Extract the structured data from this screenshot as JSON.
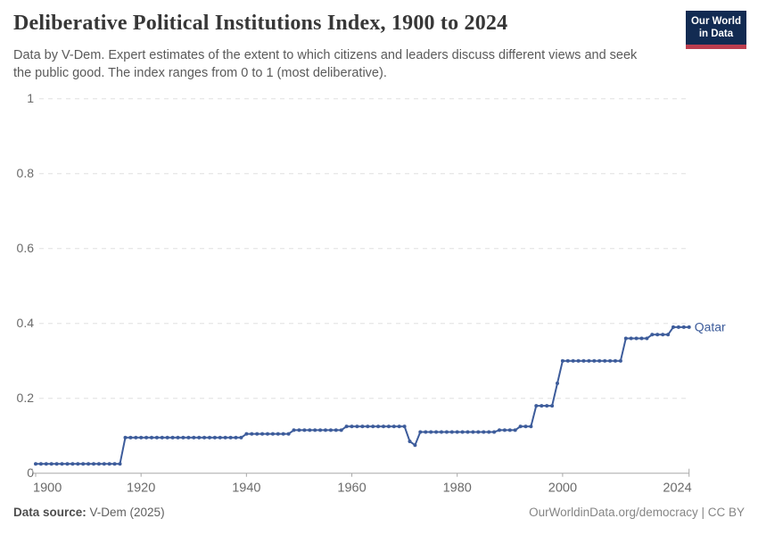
{
  "header": {
    "title": "Deliberative Political Institutions Index, 1900 to 2024",
    "subtitle": "Data by V-Dem. Expert estimates of the extent to which citizens and leaders discuss different views and seek the public good. The index ranges from 0 to 1 (most deliberative).",
    "logo": {
      "line1": "Our World",
      "line2": "in Data",
      "bg_color": "#122b52",
      "stripe_color": "#bc3e4f"
    }
  },
  "chart_data": {
    "type": "line",
    "title": "Deliberative Political Institutions Index, 1900 to 2024",
    "xlabel": "",
    "ylabel": "",
    "xlim": [
      1900,
      2024
    ],
    "ylim": [
      0,
      1
    ],
    "xticks": [
      1900,
      1920,
      1940,
      1960,
      1980,
      2000,
      2024
    ],
    "yticks": [
      0,
      0.2,
      0.4,
      0.6,
      0.8,
      1
    ],
    "grid": "horizontal-dashed",
    "legend_position": "end-of-line-label",
    "line_color": "#3d5c9b",
    "grid_color": "#e0e0e0",
    "axis_color": "#a8a8a8",
    "tick_label_color": "#6b6b6b",
    "series": [
      {
        "name": "Qatar",
        "color": "#3d5c9b",
        "x": [
          1900,
          1901,
          1902,
          1903,
          1904,
          1905,
          1906,
          1907,
          1908,
          1909,
          1910,
          1911,
          1912,
          1913,
          1914,
          1915,
          1916,
          1917,
          1918,
          1919,
          1920,
          1921,
          1922,
          1923,
          1924,
          1925,
          1926,
          1927,
          1928,
          1929,
          1930,
          1931,
          1932,
          1933,
          1934,
          1935,
          1936,
          1937,
          1938,
          1939,
          1940,
          1941,
          1942,
          1943,
          1944,
          1945,
          1946,
          1947,
          1948,
          1949,
          1950,
          1951,
          1952,
          1953,
          1954,
          1955,
          1956,
          1957,
          1958,
          1959,
          1960,
          1961,
          1962,
          1963,
          1964,
          1965,
          1966,
          1967,
          1968,
          1969,
          1970,
          1971,
          1972,
          1973,
          1974,
          1975,
          1976,
          1977,
          1978,
          1979,
          1980,
          1981,
          1982,
          1983,
          1984,
          1985,
          1986,
          1987,
          1988,
          1989,
          1990,
          1991,
          1992,
          1993,
          1994,
          1995,
          1996,
          1997,
          1998,
          1999,
          2000,
          2001,
          2002,
          2003,
          2004,
          2005,
          2006,
          2007,
          2008,
          2009,
          2010,
          2011,
          2012,
          2013,
          2014,
          2015,
          2016,
          2017,
          2018,
          2019,
          2020,
          2021,
          2022,
          2023,
          2024
        ],
        "values": [
          0.025,
          0.025,
          0.025,
          0.025,
          0.025,
          0.025,
          0.025,
          0.025,
          0.025,
          0.025,
          0.025,
          0.025,
          0.025,
          0.025,
          0.025,
          0.025,
          0.025,
          0.095,
          0.095,
          0.095,
          0.095,
          0.095,
          0.095,
          0.095,
          0.095,
          0.095,
          0.095,
          0.095,
          0.095,
          0.095,
          0.095,
          0.095,
          0.095,
          0.095,
          0.095,
          0.095,
          0.095,
          0.095,
          0.095,
          0.095,
          0.105,
          0.105,
          0.105,
          0.105,
          0.105,
          0.105,
          0.105,
          0.105,
          0.105,
          0.115,
          0.115,
          0.115,
          0.115,
          0.115,
          0.115,
          0.115,
          0.115,
          0.115,
          0.115,
          0.125,
          0.125,
          0.125,
          0.125,
          0.125,
          0.125,
          0.125,
          0.125,
          0.125,
          0.125,
          0.125,
          0.125,
          0.085,
          0.075,
          0.11,
          0.11,
          0.11,
          0.11,
          0.11,
          0.11,
          0.11,
          0.11,
          0.11,
          0.11,
          0.11,
          0.11,
          0.11,
          0.11,
          0.11,
          0.115,
          0.115,
          0.115,
          0.115,
          0.125,
          0.125,
          0.125,
          0.18,
          0.18,
          0.18,
          0.18,
          0.24,
          0.3,
          0.3,
          0.3,
          0.3,
          0.3,
          0.3,
          0.3,
          0.3,
          0.3,
          0.3,
          0.3,
          0.3,
          0.36,
          0.36,
          0.36,
          0.36,
          0.36,
          0.37,
          0.37,
          0.37,
          0.37,
          0.39,
          0.39,
          0.39,
          0.39
        ]
      }
    ]
  },
  "footer": {
    "source_label": "Data source:",
    "source_value": " V-Dem (2025)",
    "right": "OurWorldinData.org/democracy | CC BY"
  }
}
